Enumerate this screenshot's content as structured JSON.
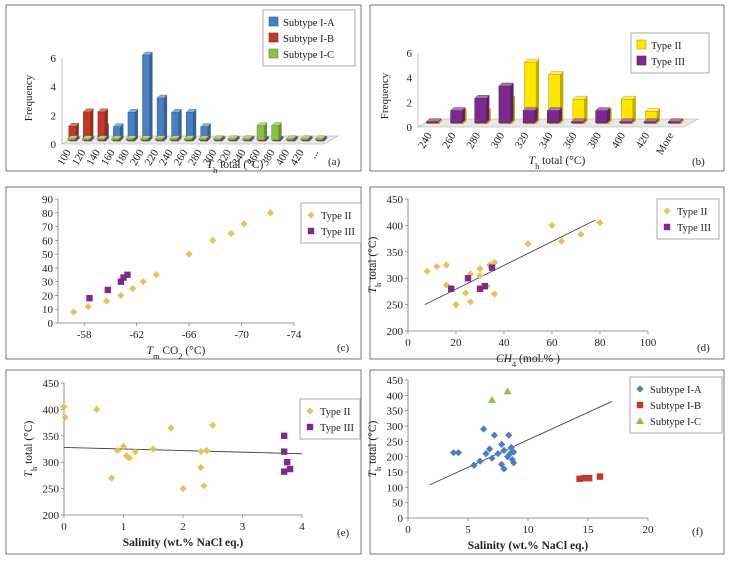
{
  "figure": {
    "legend_colors": {
      "Subtype I-A": "#4a7fc4",
      "Subtype I-B": "#c0392b",
      "Subtype I-C": "#8dc045",
      "Type II": "#ffd700",
      "Type II point": "#e8c15a",
      "Type III": "#7b2a8c"
    }
  },
  "chart_data": [
    {
      "id": "a",
      "panel_label": "(a)",
      "type": "bar",
      "ylabel": "Frequency",
      "xlabel_main": "T",
      "xlabel_sub": "h",
      "xlabel_rest": " total (°C)",
      "ylim": [
        0,
        6
      ],
      "yticks": [
        "0",
        "2",
        "4",
        "6"
      ],
      "categories": [
        "100",
        "120",
        "140",
        "160",
        "180",
        "200",
        "220",
        "240",
        "260",
        "280",
        "300",
        "320",
        "340",
        "360",
        "380",
        "400",
        "420",
        "..."
      ],
      "series": [
        {
          "name": "Subtype I-A",
          "color": "#4a7fc4",
          "values": [
            0,
            0,
            1,
            1,
            2,
            6,
            3,
            2,
            2,
            1,
            0,
            0,
            0,
            0,
            0,
            0,
            0,
            0
          ]
        },
        {
          "name": "Subtype I-B",
          "color": "#c0392b",
          "values": [
            1,
            2,
            2,
            0,
            0,
            0,
            0,
            0,
            0,
            0,
            0,
            0,
            0,
            0,
            0,
            0,
            0,
            0
          ]
        },
        {
          "name": "Subtype I-C",
          "color": "#8dc045",
          "values": [
            0,
            0,
            0,
            0,
            0,
            0,
            0,
            0,
            0,
            0,
            0,
            0,
            0,
            1,
            1,
            0,
            0,
            0
          ]
        }
      ],
      "legend_position": "top-right"
    },
    {
      "id": "b",
      "panel_label": "(b)",
      "type": "bar",
      "ylabel": "Frequency",
      "xlabel_main": "T",
      "xlabel_sub": "h",
      "xlabel_rest": " total (°C)",
      "ylim": [
        0,
        6
      ],
      "yticks": [
        "0",
        "2",
        "4",
        "6"
      ],
      "categories": [
        "240",
        "260",
        "280",
        "300",
        "320",
        "340",
        "360",
        "380",
        "400",
        "420",
        "More"
      ],
      "series": [
        {
          "name": "Type II",
          "color": "#ffe600",
          "values": [
            0,
            1,
            1,
            2,
            5,
            4,
            2,
            1,
            2,
            1,
            0
          ]
        },
        {
          "name": "Type III",
          "color": "#7b2a8c",
          "values": [
            0,
            1,
            2,
            3,
            1,
            1,
            0,
            1,
            0,
            0,
            0
          ]
        }
      ],
      "legend_position": "top-right"
    },
    {
      "id": "c",
      "panel_label": "(c)",
      "type": "scatter",
      "xlabel_main": "T",
      "xlabel_sub": "m",
      "xlabel_rest": " CO",
      "xlabel_sub2": "2",
      "xlabel_tail": " (°C)",
      "xlim": [
        -56,
        -74
      ],
      "ylim": [
        0,
        90
      ],
      "xticks": [
        "-58",
        "-62",
        "-66",
        "-70",
        "-74"
      ],
      "yticks": [
        "0",
        "10",
        "20",
        "30",
        "40",
        "50",
        "60",
        "70",
        "80",
        "90"
      ],
      "series": [
        {
          "name": "Type II",
          "points": [
            [
              -57.2,
              8
            ],
            [
              -58.3,
              12
            ],
            [
              -59.7,
              16
            ],
            [
              -60.8,
              20
            ],
            [
              -61.7,
              25
            ],
            [
              -62.5,
              30
            ],
            [
              -63.5,
              35
            ],
            [
              -66.0,
              50
            ],
            [
              -67.8,
              60
            ],
            [
              -69.2,
              65
            ],
            [
              -70.2,
              72
            ],
            [
              -72.2,
              80
            ]
          ]
        },
        {
          "name": "Type III",
          "points": [
            [
              -58.4,
              18
            ],
            [
              -59.8,
              24
            ],
            [
              -60.8,
              30
            ],
            [
              -61.0,
              33
            ],
            [
              -61.3,
              35
            ]
          ]
        }
      ],
      "legend_position": "top-right"
    },
    {
      "id": "d",
      "panel_label": "(d)",
      "type": "scatter",
      "xlabel_main": "CH",
      "xlabel_sub": "4",
      "xlabel_rest": " (mol.% )",
      "ylabel_main": "T",
      "ylabel_sub": "h",
      "ylabel_rest": " total (°C)",
      "xlim": [
        0,
        100
      ],
      "ylim": [
        200,
        450
      ],
      "xticks": [
        "0",
        "20",
        "40",
        "60",
        "80",
        "100"
      ],
      "yticks": [
        "200",
        "250",
        "300",
        "350",
        "400",
        "450"
      ],
      "series": [
        {
          "name": "Type II",
          "points": [
            [
              8,
              313
            ],
            [
              12,
              322
            ],
            [
              16,
              325
            ],
            [
              16,
              287
            ],
            [
              20,
              250
            ],
            [
              24,
              272
            ],
            [
              26,
              255
            ],
            [
              26,
              308
            ],
            [
              30,
              318
            ],
            [
              30,
              305
            ],
            [
              33,
              285
            ],
            [
              34,
              325
            ],
            [
              36,
              330
            ],
            [
              36,
              270
            ],
            [
              50,
              365
            ],
            [
              60,
              400
            ],
            [
              64,
              370
            ],
            [
              72,
              383
            ],
            [
              80,
              405
            ]
          ]
        },
        {
          "name": "Type III",
          "points": [
            [
              18,
              280
            ],
            [
              25,
              300
            ],
            [
              30,
              280
            ],
            [
              32,
              285
            ],
            [
              35,
              320
            ]
          ]
        }
      ],
      "trendline": [
        [
          7,
          250
        ],
        [
          78,
          410
        ]
      ],
      "legend_position": "top-right"
    },
    {
      "id": "e",
      "panel_label": "(e)",
      "type": "scatter",
      "xlabel": "Salinity (wt.% NaCl eq.)",
      "ylabel_main": "T",
      "ylabel_sub": "h",
      "ylabel_rest": " total (°C)",
      "xlim": [
        0,
        4
      ],
      "ylim": [
        200,
        450
      ],
      "xticks": [
        "0",
        "1",
        "2",
        "3",
        "4"
      ],
      "yticks": [
        "200",
        "250",
        "300",
        "350",
        "400",
        "450"
      ],
      "series": [
        {
          "name": "Type II",
          "points": [
            [
              0.0,
              405
            ],
            [
              0.02,
              385
            ],
            [
              0.55,
              400
            ],
            [
              0.8,
              270
            ],
            [
              0.9,
              322
            ],
            [
              1.0,
              330
            ],
            [
              1.05,
              312
            ],
            [
              1.1,
              308
            ],
            [
              1.2,
              320
            ],
            [
              1.5,
              325
            ],
            [
              1.8,
              365
            ],
            [
              2.0,
              250
            ],
            [
              2.3,
              320
            ],
            [
              2.3,
              290
            ],
            [
              2.35,
              255
            ],
            [
              2.4,
              322
            ],
            [
              2.5,
              370
            ]
          ]
        },
        {
          "name": "Type III",
          "points": [
            [
              3.7,
              350
            ],
            [
              3.7,
              320
            ],
            [
              3.75,
              300
            ],
            [
              3.7,
              282
            ],
            [
              3.8,
              287
            ]
          ]
        }
      ],
      "trendline": [
        [
          0,
          328
        ],
        [
          4,
          316
        ]
      ],
      "legend_position": "top-right"
    },
    {
      "id": "f",
      "panel_label": "(f)",
      "type": "scatter",
      "xlabel": "Salinity (wt.% NaCl eq.)",
      "ylabel_main": "T",
      "ylabel_sub": "h",
      "ylabel_rest": " total (°C)",
      "xlim": [
        0,
        20
      ],
      "ylim": [
        0,
        450
      ],
      "xticks": [
        "0",
        "5",
        "10",
        "15",
        "20"
      ],
      "yticks": [
        "0",
        "50",
        "100",
        "150",
        "200",
        "250",
        "300",
        "350",
        "400",
        "450"
      ],
      "series": [
        {
          "name": "Subtype I-A",
          "points": [
            [
              3.8,
              213
            ],
            [
              4.2,
              213
            ],
            [
              5.5,
              172
            ],
            [
              6.0,
              185
            ],
            [
              6.3,
              290
            ],
            [
              6.5,
              210
            ],
            [
              6.8,
              225
            ],
            [
              7.0,
              195
            ],
            [
              7.2,
              270
            ],
            [
              7.5,
              210
            ],
            [
              7.8,
              240
            ],
            [
              7.8,
              175
            ],
            [
              8.0,
              160
            ],
            [
              8.0,
              220
            ],
            [
              8.3,
              200
            ],
            [
              8.4,
              270
            ],
            [
              8.5,
              210
            ],
            [
              8.6,
              230
            ],
            [
              8.7,
              190
            ],
            [
              8.8,
              180
            ],
            [
              8.8,
              215
            ]
          ]
        },
        {
          "name": "Subtype I-B",
          "points": [
            [
              14.3,
              128
            ],
            [
              14.7,
              130
            ],
            [
              15.1,
              130
            ],
            [
              16.0,
              135
            ]
          ]
        },
        {
          "name": "Subtype I-C",
          "points": [
            [
              7.0,
              385
            ],
            [
              8.3,
              413
            ]
          ]
        }
      ],
      "trendline": [
        [
          1.8,
          108
        ],
        [
          17,
          380
        ]
      ],
      "legend_position": "top-right"
    }
  ]
}
